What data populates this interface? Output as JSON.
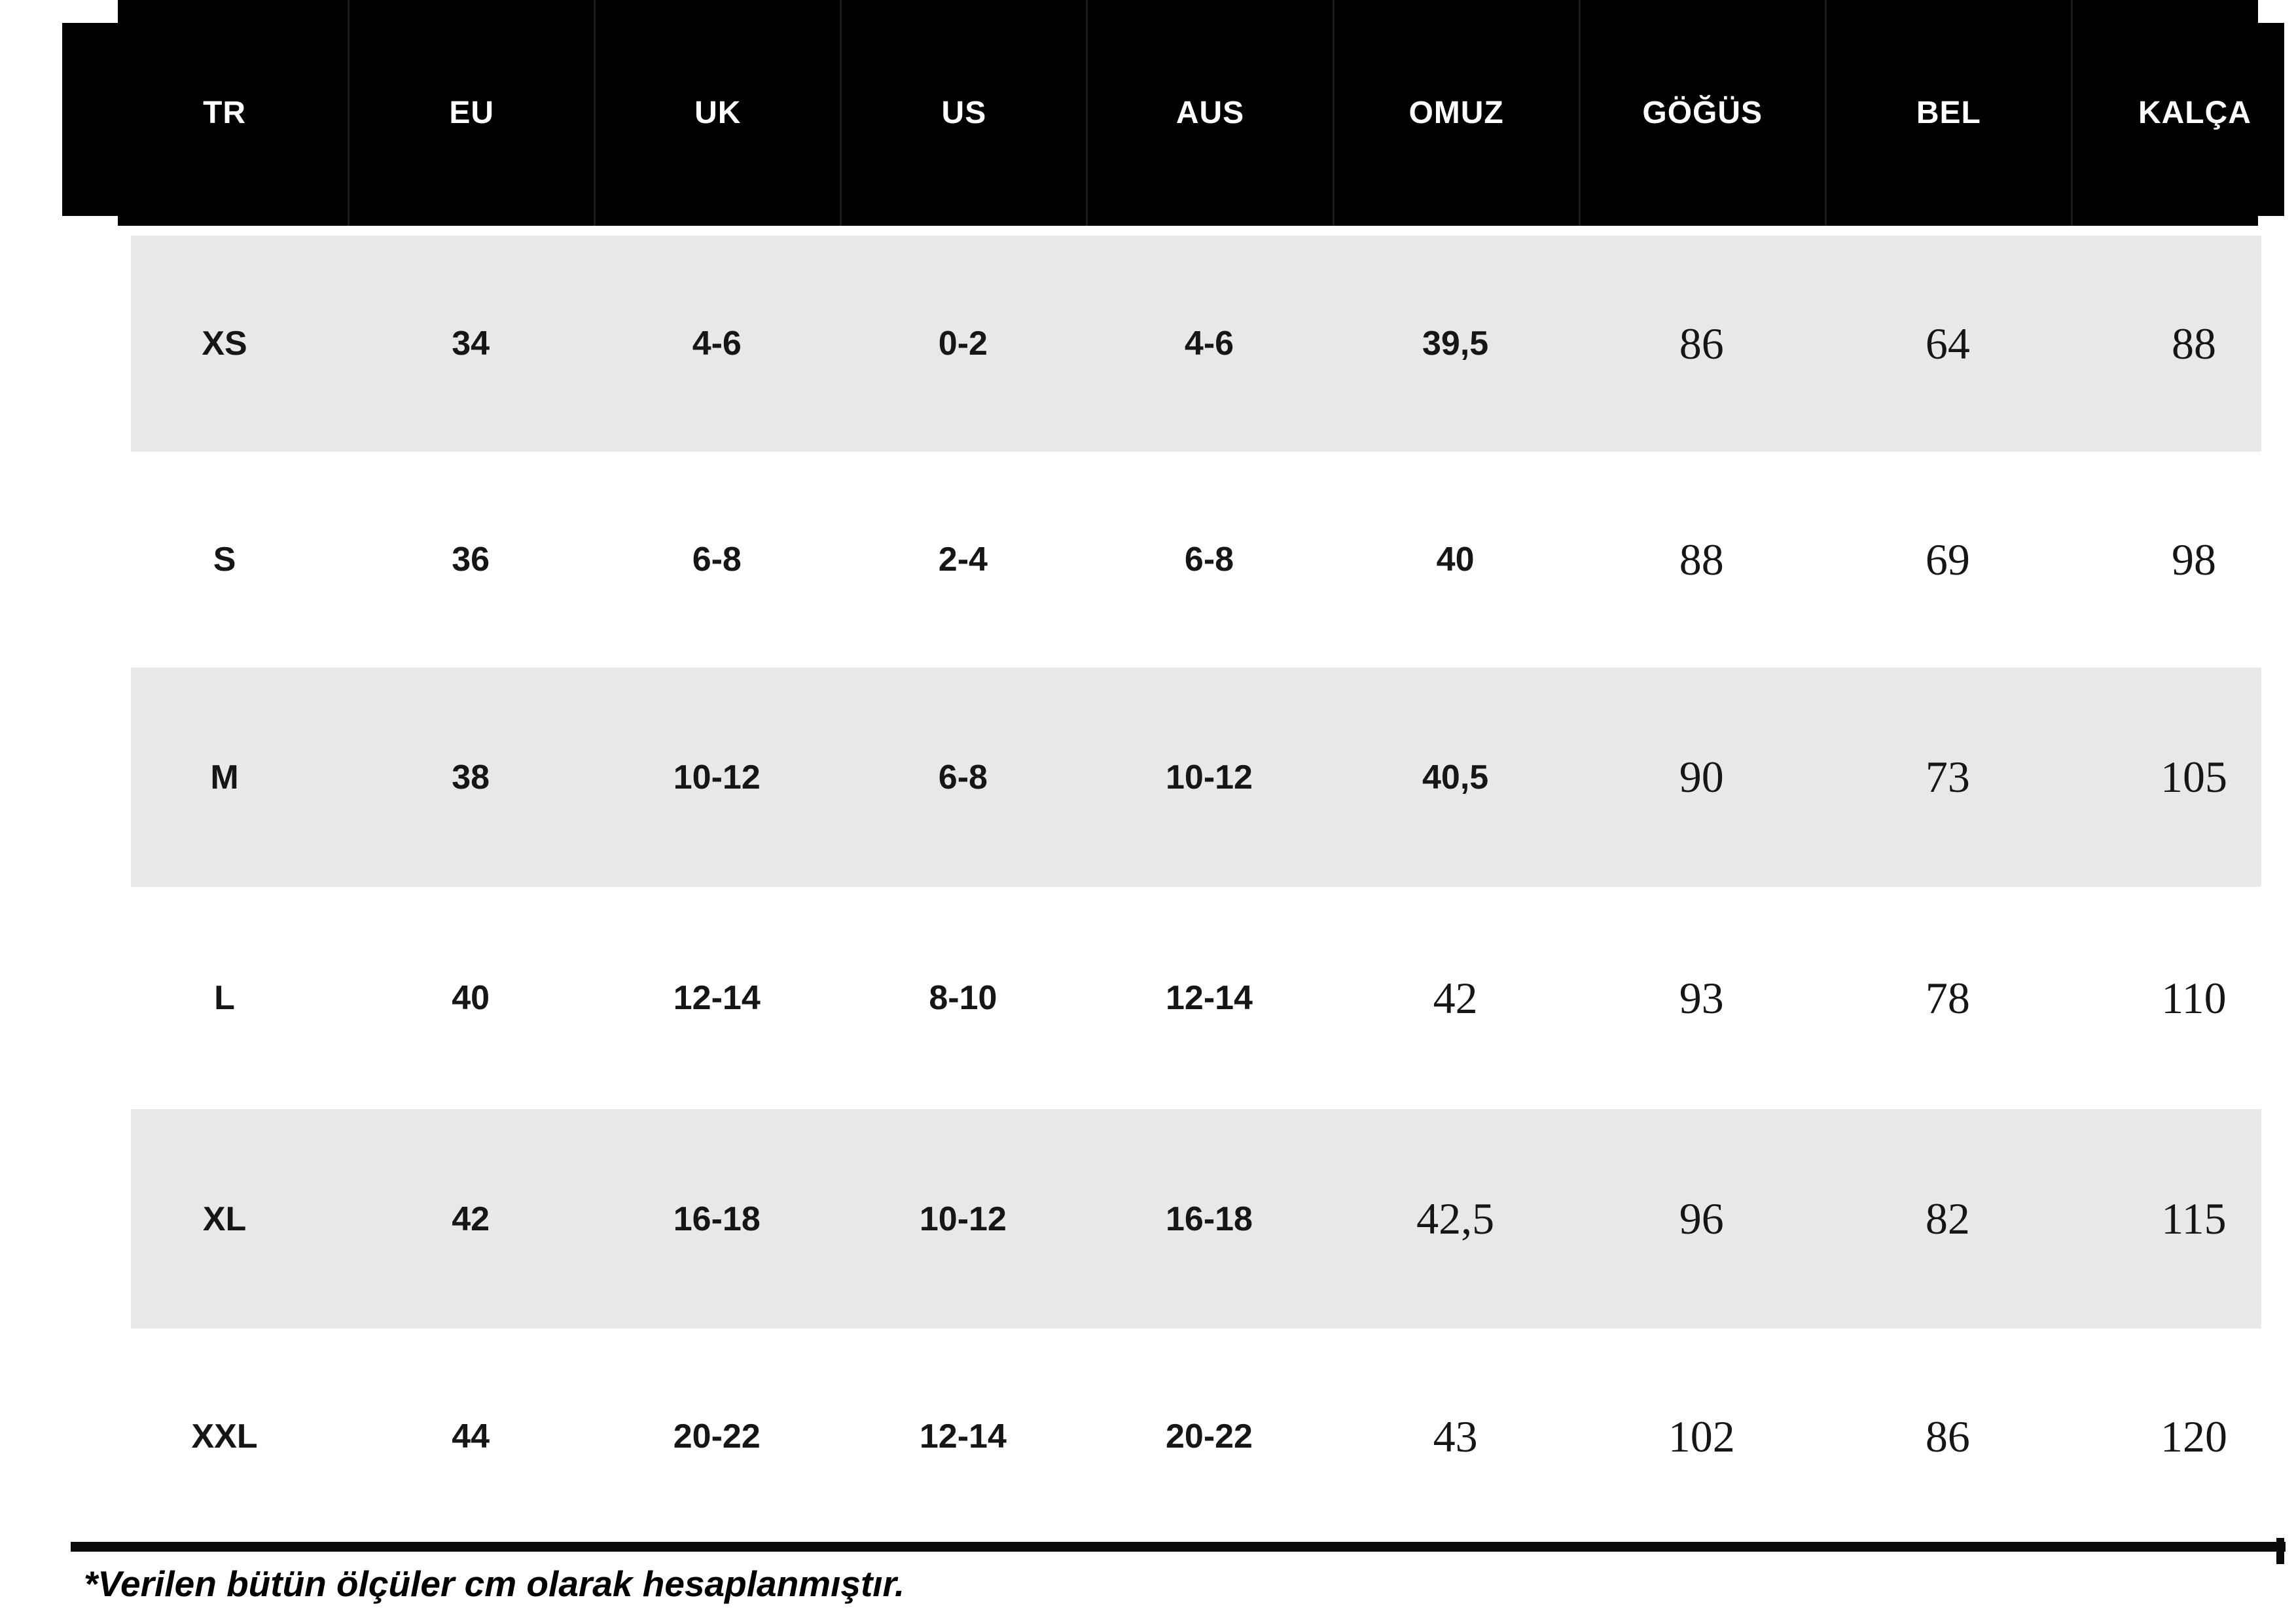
{
  "table": {
    "columns": [
      "TR",
      "EU",
      "UK",
      "US",
      "AUS",
      "OMUZ",
      "GÖĞÜS",
      "BEL",
      "KALÇA"
    ],
    "rows": [
      {
        "shaded": true,
        "cells": [
          {
            "v": "XS",
            "f": "sans"
          },
          {
            "v": "34",
            "f": "sans"
          },
          {
            "v": "4-6",
            "f": "sans"
          },
          {
            "v": "0-2",
            "f": "sans"
          },
          {
            "v": "4-6",
            "f": "sans"
          },
          {
            "v": "39,5",
            "f": "sans"
          },
          {
            "v": "86",
            "f": "serif"
          },
          {
            "v": "64",
            "f": "serif"
          },
          {
            "v": "88",
            "f": "serif"
          }
        ]
      },
      {
        "shaded": false,
        "cells": [
          {
            "v": "S",
            "f": "sans"
          },
          {
            "v": "36",
            "f": "sans"
          },
          {
            "v": "6-8",
            "f": "sans"
          },
          {
            "v": "2-4",
            "f": "sans"
          },
          {
            "v": "6-8",
            "f": "sans"
          },
          {
            "v": "40",
            "f": "sans"
          },
          {
            "v": "88",
            "f": "serif"
          },
          {
            "v": "69",
            "f": "serif"
          },
          {
            "v": "98",
            "f": "serif"
          }
        ]
      },
      {
        "shaded": true,
        "cells": [
          {
            "v": "M",
            "f": "sans"
          },
          {
            "v": "38",
            "f": "sans"
          },
          {
            "v": "10-12",
            "f": "sans"
          },
          {
            "v": "6-8",
            "f": "sans"
          },
          {
            "v": "10-12",
            "f": "sans"
          },
          {
            "v": "40,5",
            "f": "sans"
          },
          {
            "v": "90",
            "f": "serif"
          },
          {
            "v": "73",
            "f": "serif"
          },
          {
            "v": "105",
            "f": "serif"
          }
        ]
      },
      {
        "shaded": false,
        "cells": [
          {
            "v": "L",
            "f": "sans"
          },
          {
            "v": "40",
            "f": "sans"
          },
          {
            "v": "12-14",
            "f": "sans"
          },
          {
            "v": "8-10",
            "f": "sans"
          },
          {
            "v": "12-14",
            "f": "sans"
          },
          {
            "v": "42",
            "f": "serif"
          },
          {
            "v": "93",
            "f": "serif"
          },
          {
            "v": "78",
            "f": "serif"
          },
          {
            "v": "110",
            "f": "serif"
          }
        ]
      },
      {
        "shaded": true,
        "cells": [
          {
            "v": "XL",
            "f": "sans"
          },
          {
            "v": "42",
            "f": "sans"
          },
          {
            "v": "16-18",
            "f": "sans"
          },
          {
            "v": "10-12",
            "f": "sans"
          },
          {
            "v": "16-18",
            "f": "sans"
          },
          {
            "v": "42,5",
            "f": "serif"
          },
          {
            "v": "96",
            "f": "serif"
          },
          {
            "v": "82",
            "f": "serif"
          },
          {
            "v": "115",
            "f": "serif"
          }
        ]
      },
      {
        "shaded": false,
        "cells": [
          {
            "v": "XXL",
            "f": "sans"
          },
          {
            "v": "44",
            "f": "sans"
          },
          {
            "v": "20-22",
            "f": "sans"
          },
          {
            "v": "12-14",
            "f": "sans"
          },
          {
            "v": "20-22",
            "f": "sans"
          },
          {
            "v": "43",
            "f": "serif"
          },
          {
            "v": "102",
            "f": "serif"
          },
          {
            "v": "86",
            "f": "serif"
          },
          {
            "v": "120",
            "f": "serif"
          }
        ]
      }
    ],
    "footnote": "*Verilen bütün ölçüler cm olarak hesaplanmıştır.",
    "colors": {
      "header_bg": "#000000",
      "header_text": "#ffffff",
      "shaded_row_bg": "#e8e8e8",
      "cell_text": "#161616",
      "rule": "#0b0b0b"
    }
  }
}
